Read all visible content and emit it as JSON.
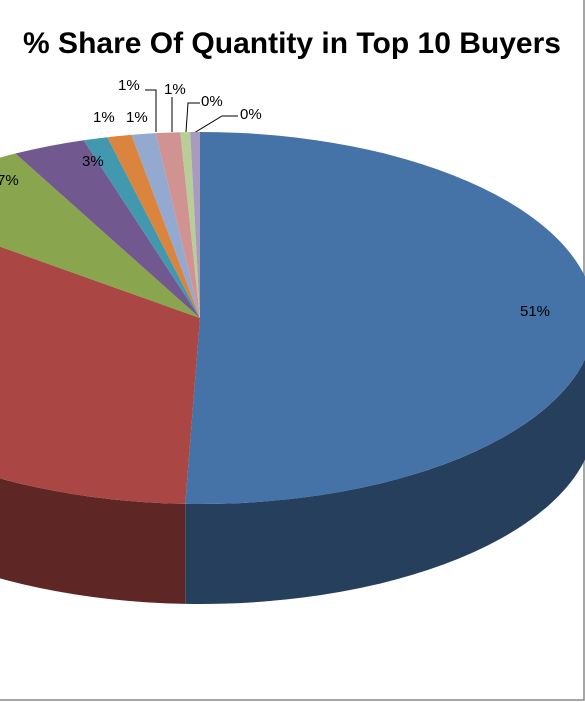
{
  "chart_data": {
    "type": "pie3d",
    "title": "% Share Of Quantity in Top 10 Buyers",
    "values": [
      51,
      35,
      7,
      3,
      1,
      1,
      1,
      1,
      0.4,
      0.4
    ],
    "value_labels": [
      "51%",
      null,
      "7%",
      "3%",
      "1%",
      "1%",
      "1%",
      "1%",
      "0%",
      "0%"
    ],
    "colors": [
      "#4572a7",
      "#aa4643",
      "#89a54e",
      "#71588f",
      "#4198af",
      "#db843d",
      "#93a9cf",
      "#d19392",
      "#b9cd96",
      "#a99bbd"
    ]
  }
}
